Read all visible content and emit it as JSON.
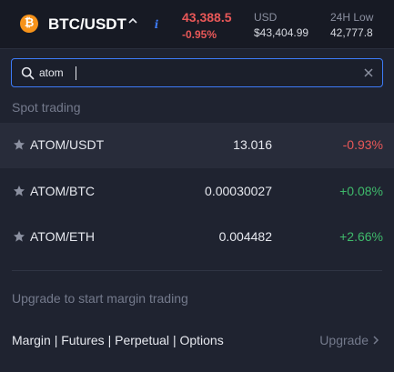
{
  "header": {
    "coin_symbol": "₿",
    "pair": "BTC/USDT",
    "last_price": "43,388.5",
    "change_pct": "-0.95%",
    "usd_label": "USD",
    "usd_value": "$43,404.99",
    "low_label": "24H Low",
    "low_value": "42,777.8",
    "info_glyph": "i"
  },
  "search": {
    "value": "atom",
    "placeholder": ""
  },
  "section": {
    "spot_label": "Spot trading"
  },
  "rows": [
    {
      "symbol": "ATOM/USDT",
      "price": "13.016",
      "change": "-0.93%",
      "direction": "down"
    },
    {
      "symbol": "ATOM/BTC",
      "price": "0.00030027",
      "change": "+0.08%",
      "direction": "up"
    },
    {
      "symbol": "ATOM/ETH",
      "price": "0.004482",
      "change": "+2.66%",
      "direction": "up"
    }
  ],
  "footer": {
    "upgrade_note": "Upgrade to start margin trading",
    "margin_link": "Margin",
    "futures_link": "Futures",
    "perpetual_link": "Perpetual",
    "options_link": "Options",
    "separator": "|",
    "upgrade_label": "Upgrade"
  },
  "colors": {
    "down": "#e95858",
    "up": "#3fba6b",
    "accent": "#3d7bf7",
    "coin": "#f7931a"
  },
  "icons": [
    "bitcoin-icon",
    "chevron-up-icon",
    "info-icon",
    "search-icon",
    "clear-icon",
    "star-icon",
    "chevron-right-icon"
  ]
}
